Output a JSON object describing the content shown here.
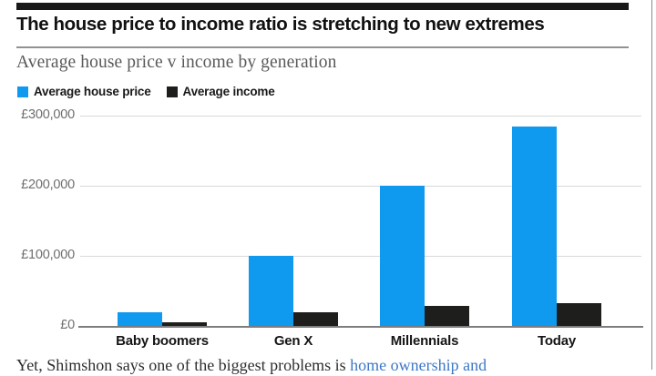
{
  "article": {
    "headline": "The house price to income ratio is stretching to new extremes",
    "body_prefix": "Yet, Shimshon says one of the biggest problems is ",
    "body_link_text": "home ownership and",
    "body_link_color": "#3c78c8"
  },
  "chart_data": {
    "type": "bar",
    "title": "Average house price v income by generation",
    "categories": [
      "Baby boomers",
      "Gen X",
      "Millennials",
      "Today"
    ],
    "series": [
      {
        "name": "Average house price",
        "color": "#0f9af0",
        "values": [
          20000,
          100000,
          200000,
          285000
        ]
      },
      {
        "name": "Average income",
        "color": "#1e1e1c",
        "values": [
          5000,
          20000,
          29000,
          32000
        ]
      }
    ],
    "ylabel": "",
    "xlabel": "",
    "ylim": [
      0,
      300000
    ],
    "currency": "£",
    "y_ticks": [
      {
        "value": 0,
        "label": "£0"
      },
      {
        "value": 100000,
        "label": "£100,000"
      },
      {
        "value": 200000,
        "label": "£200,000"
      },
      {
        "value": 300000,
        "label": "£300,000"
      }
    ],
    "grid": true,
    "legend_position": "top-left"
  }
}
